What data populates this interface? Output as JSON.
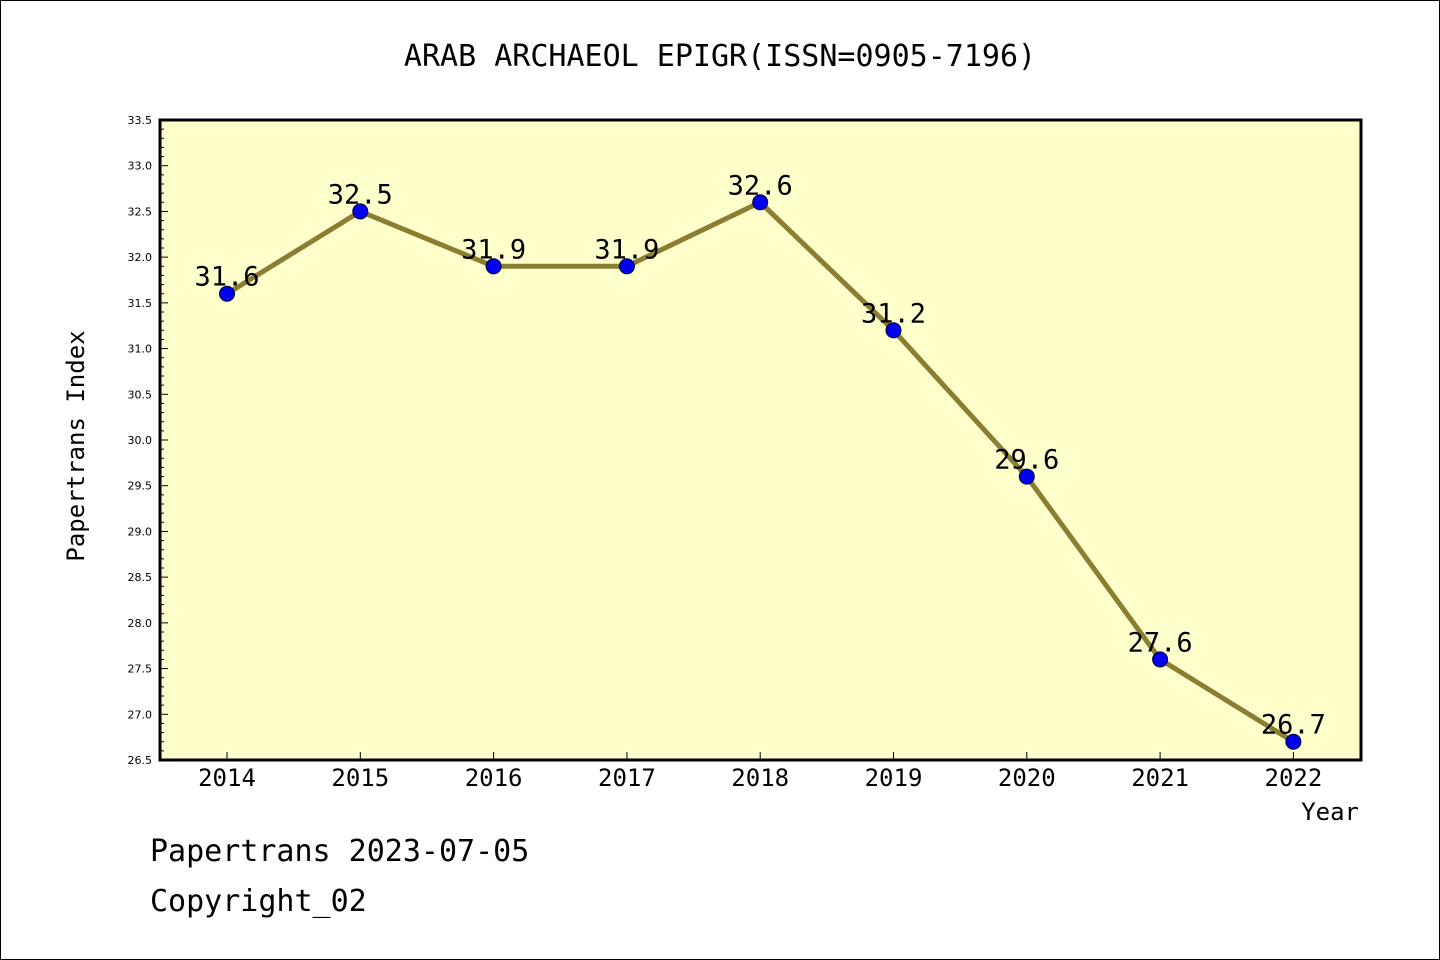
{
  "chart_data": {
    "type": "line",
    "title": "ARAB ARCHAEOL EPIGR(ISSN=0905-7196)",
    "xlabel": "Year",
    "ylabel": "Papertrans Index",
    "categories": [
      "2014",
      "2015",
      "2016",
      "2017",
      "2018",
      "2019",
      "2020",
      "2021",
      "2022"
    ],
    "series": [
      {
        "values": [
          31.6,
          32.5,
          31.9,
          31.9,
          32.6,
          31.2,
          29.6,
          27.6,
          26.7
        ],
        "labels": [
          "31.6",
          "32.5",
          "31.9",
          "31.9",
          "32.6",
          "31.2",
          "29.6",
          "27.6",
          "26.7"
        ]
      }
    ],
    "ylim": [
      26.5,
      33.5
    ],
    "yticks": [
      "26.5",
      "27.0",
      "27.5",
      "28.0",
      "28.5",
      "29.0",
      "29.5",
      "30.0",
      "30.5",
      "31.0",
      "31.5",
      "32.0",
      "32.5",
      "33.0",
      "33.5"
    ],
    "grid": false,
    "colors": {
      "plot_background": "#ffffcc",
      "line": "#8b7d32",
      "marker": "#0000ee"
    }
  },
  "footer": {
    "line1": "Papertrans 2023-07-05",
    "line2": "Copyright_02"
  }
}
